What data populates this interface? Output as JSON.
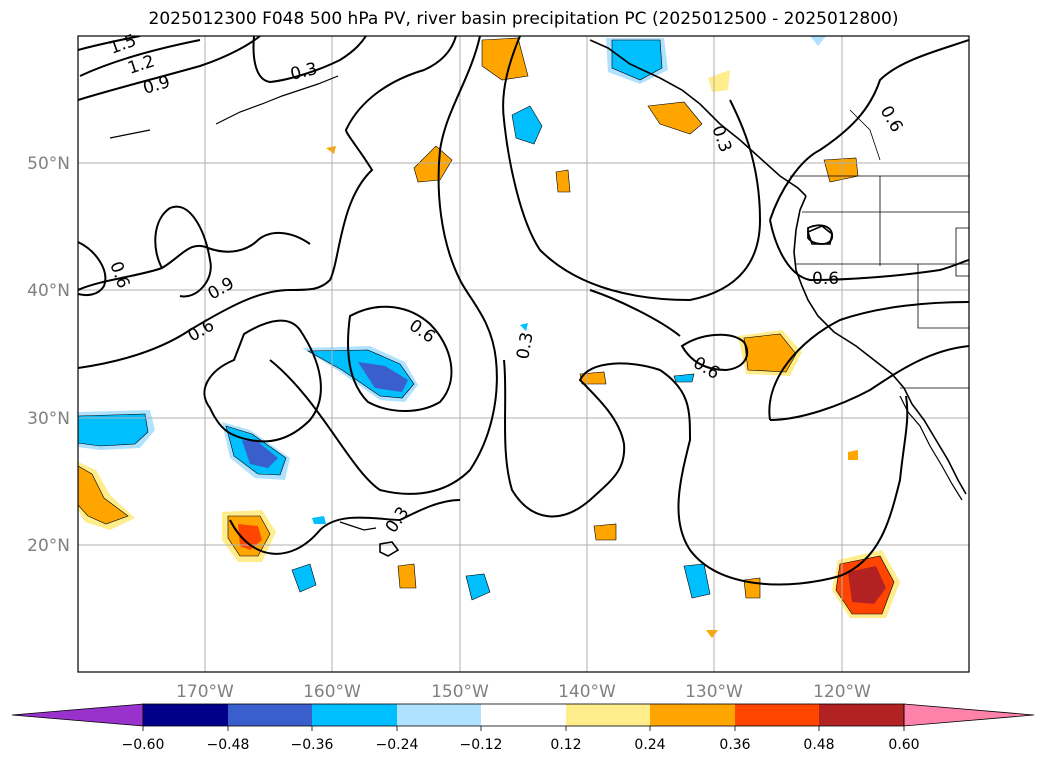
{
  "title": "2025012300 F048 500 hPa PV, river basin precipitation PC (2025012500 - 2025012800)",
  "lat_labels": [
    "50°N",
    "40°N",
    "30°N",
    "20°N"
  ],
  "lon_labels": [
    "170°W",
    "160°W",
    "150°W",
    "140°W",
    "130°W",
    "120°W"
  ],
  "contour_labels": [
    "1.5",
    "1.2",
    "0.9",
    "0.3",
    "0.6",
    "0.9",
    "0.6",
    "0.6",
    "0.3",
    "0.6",
    "0.3",
    "0.3",
    "0.6",
    "0.6"
  ],
  "colorbar": {
    "ticks": [
      "−0.60",
      "−0.48",
      "−0.36",
      "−0.24",
      "−0.12",
      "0.12",
      "0.24",
      "0.36",
      "0.48",
      "0.60"
    ],
    "colors": [
      "#9932CC",
      "#00008B",
      "#3A5FCD",
      "#00BFFF",
      "#B0E2FF",
      "#FFFFFF",
      "#FFEC8B",
      "#FFA500",
      "#FF4500",
      "#B22222",
      "#FF82AB"
    ]
  },
  "colors": {
    "blue_light": "#B0E2FF",
    "blue": "#00BFFF",
    "blue_dark": "#3A5FCD",
    "yellow": "#FFEC8B",
    "orange": "#FFA500",
    "red": "#FF4500",
    "dark_red": "#B22222",
    "grid": "#b0b0b0"
  }
}
